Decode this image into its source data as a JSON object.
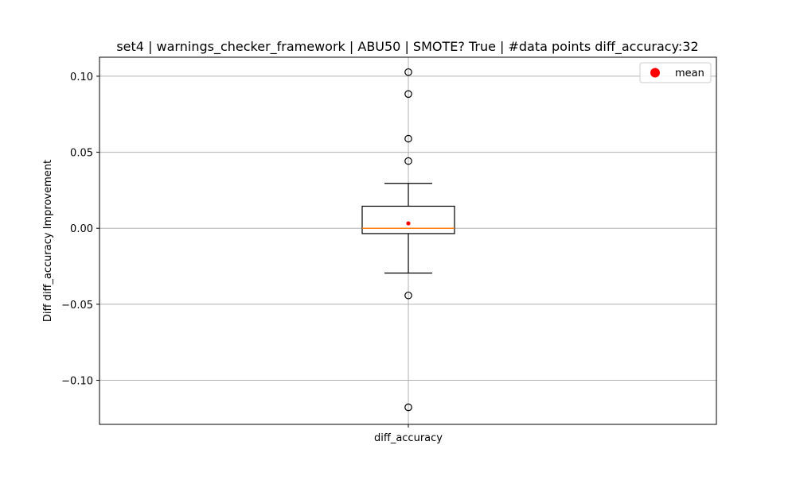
{
  "chart_data": {
    "type": "box",
    "title": "set4 | warnings_checker_framework | ABU50 | SMOTE? True | #data points diff_accuracy:32",
    "xlabel": "",
    "ylabel": "Diff diff_accuracy Improvement",
    "categories": [
      "diff_accuracy"
    ],
    "ylim": [
      -0.129,
      0.1125
    ],
    "yticks": [
      -0.1,
      -0.05,
      0.0,
      0.05,
      0.1
    ],
    "ytick_labels": [
      "−0.10",
      "−0.05",
      "0.00",
      "0.05",
      "0.10"
    ],
    "grid": true,
    "legend": {
      "position": "top-right",
      "entries": [
        {
          "label": "mean",
          "color": "#ff0000"
        }
      ]
    },
    "boxes": [
      {
        "category": "diff_accuracy",
        "whisker_low": -0.0295,
        "q1": -0.0035,
        "median": 0.0,
        "q3": 0.0145,
        "whisker_high": 0.0295,
        "mean": 0.0032,
        "outliers": [
          0.1027,
          0.0883,
          0.0589,
          0.0442,
          -0.0442,
          -0.1178
        ],
        "count": 32
      }
    ],
    "colors": {
      "box": "#000000",
      "median": "#ff7f0e",
      "mean": "#ff0000",
      "grid": "#b0b0b0"
    }
  }
}
